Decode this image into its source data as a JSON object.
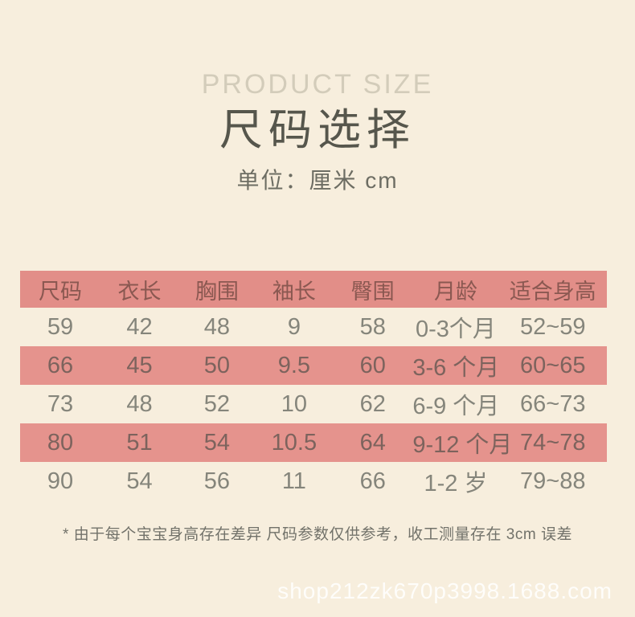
{
  "page": {
    "subtitle_en": "PRODUCT SIZE",
    "title": "尺码选择",
    "unit_label": "单位：厘米 cm"
  },
  "table": {
    "columns": [
      "尺码",
      "衣长",
      "胸围",
      "袖长",
      "臀围",
      "月龄",
      "适合身高"
    ],
    "rows": [
      {
        "cells": [
          "59",
          "42",
          "48",
          "9",
          "58",
          "0-3个月",
          "52~59"
        ]
      },
      {
        "cells": [
          "66",
          "45",
          "50",
          "9.5",
          "60",
          "3-6 个月",
          "60~65"
        ]
      },
      {
        "cells": [
          "73",
          "48",
          "52",
          "10",
          "62",
          "6-9 个月",
          "66~73"
        ]
      },
      {
        "cells": [
          "80",
          "51",
          "54",
          "10.5",
          "64",
          "9-12 个月",
          "74~78"
        ]
      },
      {
        "cells": [
          "90",
          "54",
          "56",
          "11",
          "66",
          "1-2 岁",
          "79~88"
        ]
      }
    ]
  },
  "footer": {
    "note": "* 由于每个宝宝身高存在差异 尺码参数仅供参考，收工测量存在 3cm 误差",
    "watermark": "shop212zk670p3998.1688.com"
  },
  "colors": {
    "background": "#f7eedd",
    "header_row": "#e28e88",
    "stripe_row": "#e5938d",
    "header_text": "#8a5851",
    "title_text": "#56564c",
    "subtitle_text": "#d3ccba"
  }
}
